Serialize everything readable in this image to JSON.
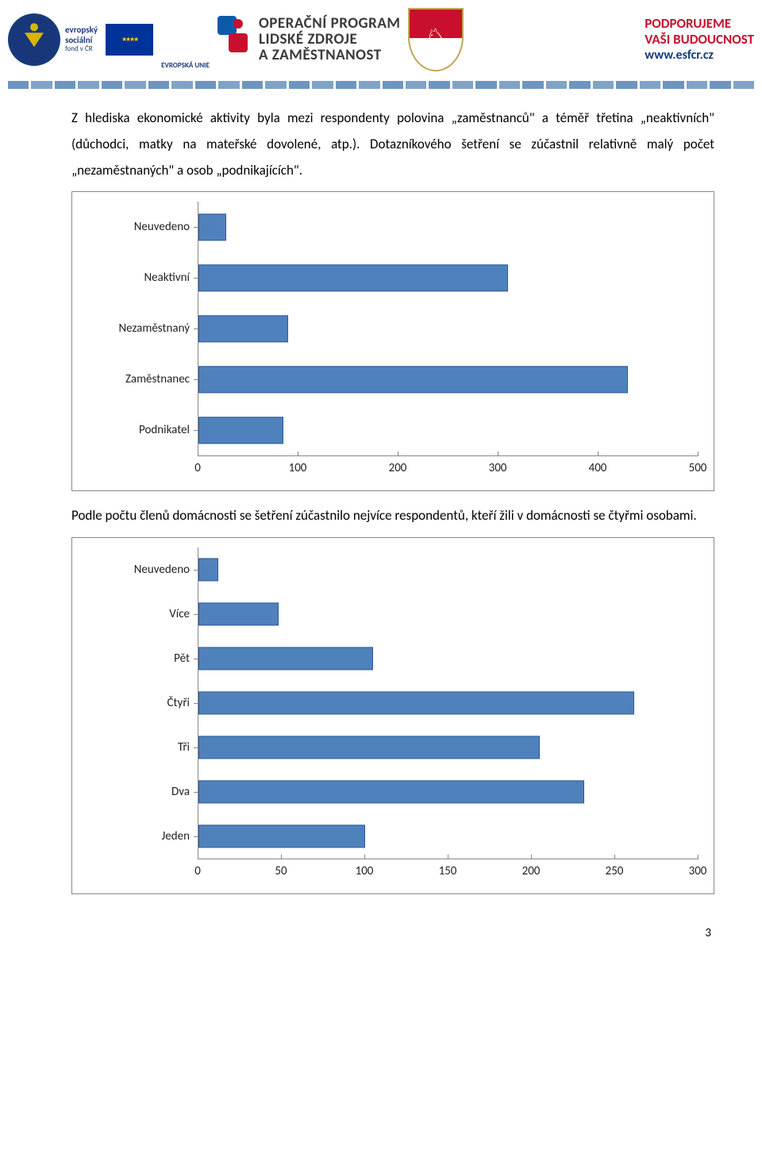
{
  "banner": {
    "esf_lines": [
      "evropský",
      "sociální",
      "fond v ČR"
    ],
    "eu_label": "EVROPSKÁ UNIE",
    "op_title_line1": "OPERAČNÍ PROGRAM",
    "op_title_line2": "LIDSKÉ ZDROJE",
    "op_title_line3": "A ZAMĚSTNANOST",
    "support_line1": "PODPORUJEME",
    "support_line2": "VAŠI BUDOUCNOST",
    "support_url": "www.esfcr.cz"
  },
  "para1": "Z hlediska ekonomické aktivity byla mezi respondenty polovina „zaměstnanců\" a téměř třetina „neaktivních\" (důchodci, matky na mateřské dovolené, atp.). Dotazníkového šetření se zúčastnil relativně malý počet „nezaměstnaných\" a osob „podnikajících\".",
  "para2": "Podle počtu členů domácnosti se šetření zúčastnilo nejvíce  respondentů, kteří žili v domácnosti se čtyřmi osobami.",
  "chart1": {
    "max": 500,
    "ticks": [
      0,
      100,
      200,
      300,
      400,
      500
    ],
    "bar_color": "#4f81bd",
    "bar_border": "#2f5a95",
    "axis_color": "#888888",
    "rows": [
      {
        "label": "Neuvedeno",
        "value": 28
      },
      {
        "label": "Neaktivní",
        "value": 310
      },
      {
        "label": "Nezaměstnaný",
        "value": 90
      },
      {
        "label": "Zaměstnanec",
        "value": 430
      },
      {
        "label": "Podnikatel",
        "value": 85
      }
    ]
  },
  "chart2": {
    "max": 300,
    "ticks": [
      0,
      50,
      100,
      150,
      200,
      250,
      300
    ],
    "bar_color": "#4f81bd",
    "bar_border": "#2f5a95",
    "axis_color": "#888888",
    "rows": [
      {
        "label": "Neuvedeno",
        "value": 12
      },
      {
        "label": "Více",
        "value": 48
      },
      {
        "label": "Pět",
        "value": 105
      },
      {
        "label": "Čtyři",
        "value": 262
      },
      {
        "label": "Tři",
        "value": 205
      },
      {
        "label": "Dva",
        "value": 232
      },
      {
        "label": "Jeden",
        "value": 100
      }
    ]
  },
  "page_number": "3"
}
